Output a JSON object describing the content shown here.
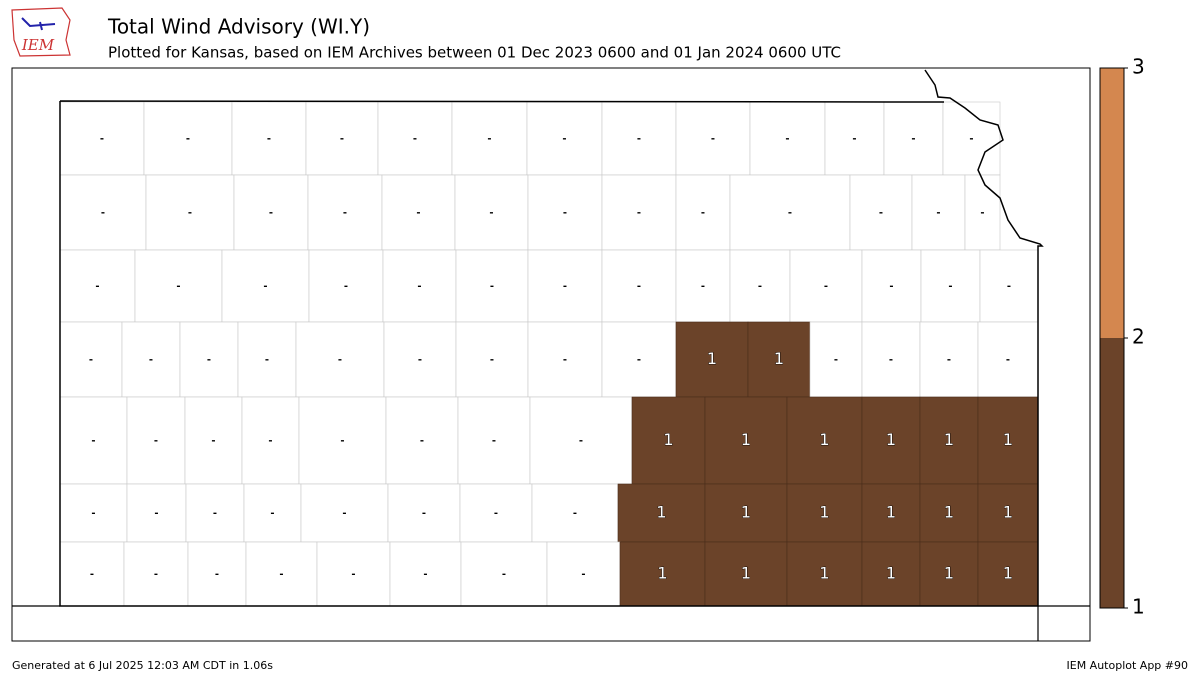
{
  "chart_data": {
    "type": "choropleth",
    "logo": "IEM",
    "title": "Total Wind Advisory (WI.Y)",
    "subtitle": "Plotted for Kansas, based on IEM Archives  between 01 Dec 2023 0600 and 01 Jan 2024 0600 UTC",
    "footer_left": "Generated at 6 Jul 2025 12:03 AM CDT in 1.06s",
    "footer_right": "IEM Autoplot App #90",
    "colorbar": {
      "lim": [
        1,
        3
      ],
      "ticks": [
        1,
        2,
        3
      ],
      "colors": [
        "#6b4329",
        "#d4874f"
      ]
    },
    "values": [
      null,
      null,
      null,
      null,
      null,
      null,
      null,
      null,
      null,
      null,
      null,
      null,
      null,
      null,
      null,
      null,
      null,
      null,
      null,
      null,
      null,
      null,
      null,
      null,
      null,
      null,
      null,
      null,
      null,
      null,
      null,
      null,
      null,
      null,
      null,
      null,
      null,
      null,
      null,
      null,
      null,
      null,
      null,
      null,
      null,
      null,
      null,
      null,
      null,
      1,
      1,
      null,
      null,
      null,
      null,
      null,
      null,
      null,
      null,
      null,
      null,
      null,
      null,
      1,
      1,
      1,
      1,
      1,
      1,
      null,
      null,
      null,
      null,
      null,
      null,
      null,
      null,
      1,
      1,
      1,
      1,
      1,
      1,
      null,
      null,
      null,
      null,
      null,
      null,
      null,
      null,
      1,
      1,
      1,
      1,
      1,
      1
    ],
    "value_labels": [
      "-",
      "-",
      "-",
      "-",
      "-",
      "-",
      "-",
      "-",
      "-",
      "-",
      "-",
      "-",
      "-",
      "-",
      "-",
      "-",
      "-",
      "-",
      "-",
      "-",
      "-",
      "-",
      "-",
      "-",
      "-",
      "-",
      "-",
      "-",
      "-",
      "-",
      "-",
      "-",
      "-",
      "-",
      "-",
      "-",
      "-",
      "-",
      "-",
      "-",
      "-",
      "-",
      "-",
      "-",
      "-",
      "-",
      "-",
      "-",
      "-",
      "1",
      "1",
      "-",
      "-",
      "-",
      "-",
      "-",
      "-",
      "-",
      "-",
      "-",
      "-",
      "-",
      "-",
      "1",
      "1",
      "1",
      "1",
      "1",
      "1",
      "-",
      "-",
      "-",
      "-",
      "-",
      "-",
      "-",
      "-",
      "1",
      "1",
      "1",
      "1",
      "1",
      "1",
      "-",
      "-",
      "-",
      "-",
      "-",
      "-",
      "-",
      "-",
      "1",
      "1",
      "1",
      "1",
      "1",
      "1"
    ]
  }
}
